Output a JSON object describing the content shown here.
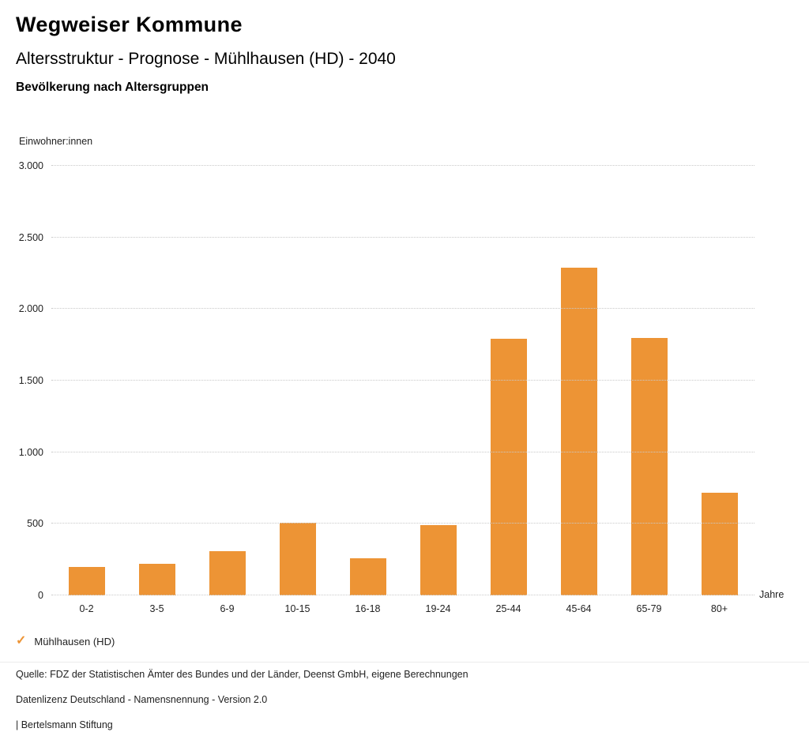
{
  "header": {
    "title": "Wegweiser Kommune",
    "subtitle": "Altersstruktur - Prognose - Mühlhausen (HD) - 2040",
    "chart_heading": "Bevölkerung nach Altersgruppen"
  },
  "chart_data": {
    "type": "bar",
    "title": "Bevölkerung nach Altersgruppen",
    "categories": [
      "0-2",
      "3-5",
      "6-9",
      "10-15",
      "16-18",
      "19-24",
      "25-44",
      "45-64",
      "65-79",
      "80+"
    ],
    "values": [
      200,
      220,
      310,
      510,
      260,
      490,
      1790,
      2290,
      1800,
      715
    ],
    "xlabel": "Jahre",
    "ylabel": "Einwohner:innen",
    "ylim": [
      0,
      3000
    ],
    "yticks": [
      0,
      500,
      1000,
      1500,
      2000,
      2500,
      3000
    ],
    "ytick_labels": [
      "0",
      "500",
      "1.000",
      "1.500",
      "2.000",
      "2.500",
      "3.000"
    ],
    "grid": "horizontal-dotted",
    "bar_color": "#ED9435",
    "legend_position": "bottom-left",
    "legend": [
      {
        "label": "Mühlhausen (HD)",
        "color": "#ED9435",
        "check_icon": "✓"
      }
    ]
  },
  "footer": {
    "source": "Quelle: FDZ der Statistischen Ämter des Bundes und der Länder, Deenst GmbH, eigene Berechnungen",
    "license": "Datenlizenz Deutschland - Namensnennung - Version 2.0",
    "attribution": "| Bertelsmann Stiftung"
  }
}
